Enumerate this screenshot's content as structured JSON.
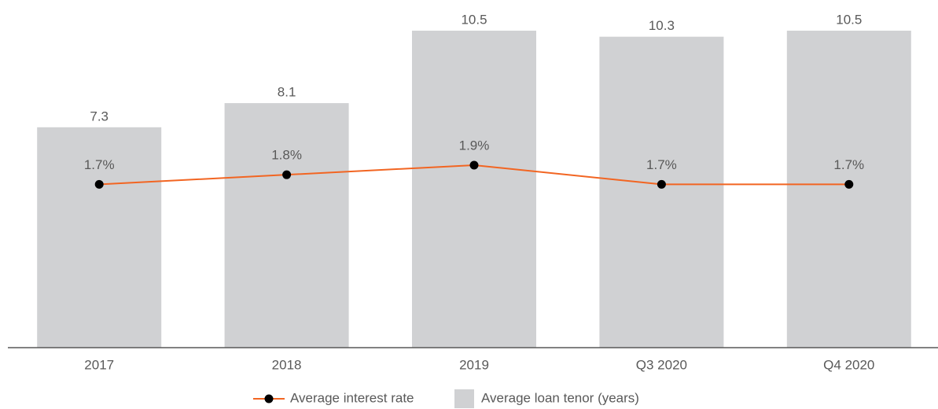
{
  "chart_data": {
    "type": "bar_line",
    "categories": [
      "2017",
      "2018",
      "2019",
      "Q3 2020",
      "Q4 2020"
    ],
    "series": [
      {
        "name": "Average interest rate",
        "type": "line",
        "axis": "y2",
        "color": "#f26522",
        "marker_color": "#000000",
        "values": [
          1.7,
          1.8,
          1.9,
          1.7,
          1.7
        ],
        "value_labels": [
          "1.7%",
          "1.8%",
          "1.9%",
          "1.7%",
          "1.7%"
        ]
      },
      {
        "name": "Average loan tenor (years)",
        "type": "bar",
        "color": "#d0d1d3",
        "values": [
          7.3,
          8.1,
          10.5,
          10.3,
          10.5
        ]
      }
    ],
    "ylim": [
      0,
      10.5
    ],
    "y2lim": [
      0,
      3.3
    ],
    "legend": "bottom"
  }
}
